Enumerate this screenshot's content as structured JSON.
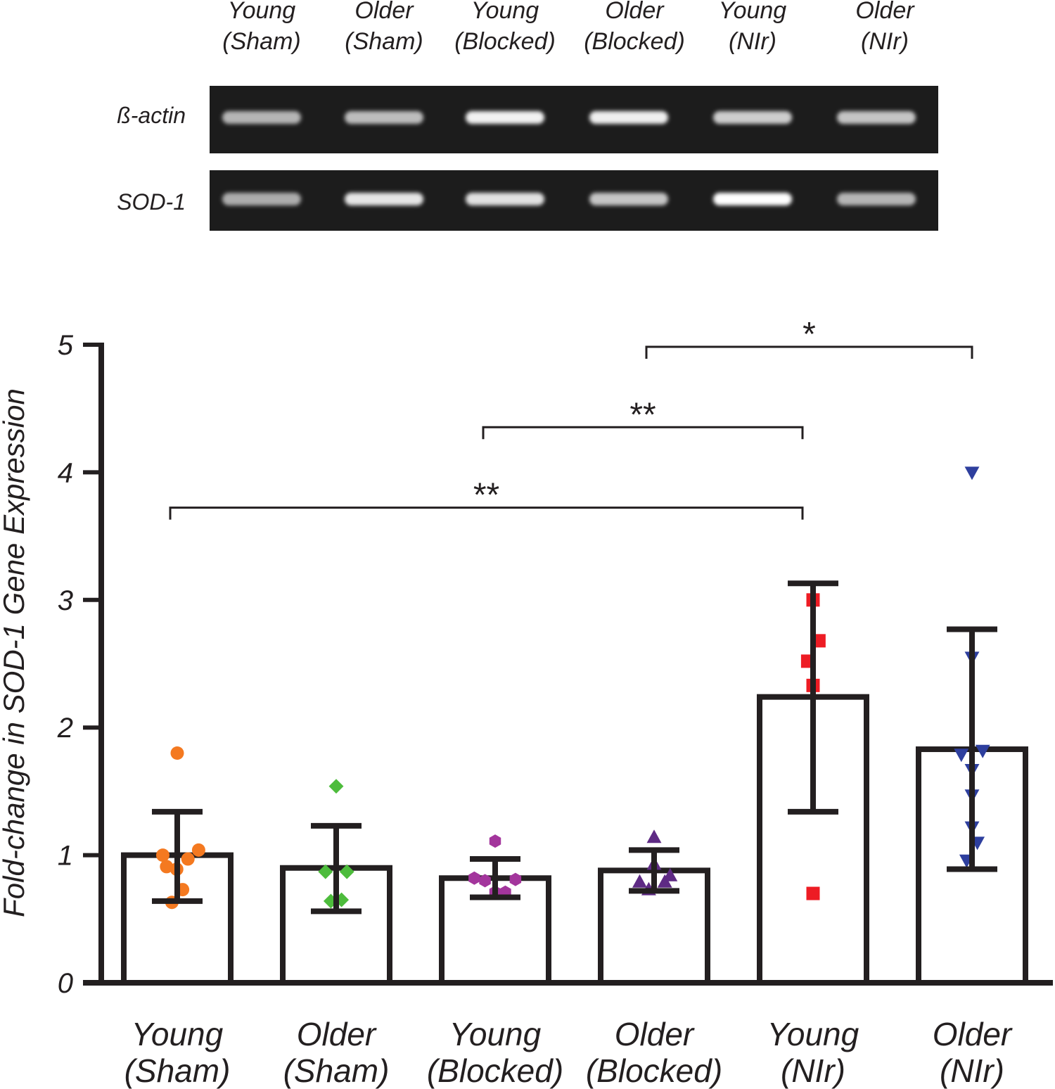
{
  "gel": {
    "lanes": [
      {
        "line1": "Young",
        "line2": "(Sham)"
      },
      {
        "line1": "Older",
        "line2": "(Sham)"
      },
      {
        "line1": "Young",
        "line2": "(Blocked)"
      },
      {
        "line1": "Older",
        "line2": "(Blocked)"
      },
      {
        "line1": "Young",
        "line2": "(NIr)"
      },
      {
        "line1": "Older",
        "line2": "(NIr)"
      }
    ],
    "rows": [
      {
        "label": "ß-actin",
        "intensities": [
          0.55,
          0.6,
          0.92,
          0.9,
          0.7,
          0.65
        ]
      },
      {
        "label": "SOD-1",
        "intensities": [
          0.5,
          0.85,
          0.82,
          0.65,
          1.0,
          0.55
        ]
      }
    ]
  },
  "chart_data": {
    "type": "bar",
    "title": "",
    "xlabel": "",
    "ylabel": "Fold-change in SOD-1 Gene Expression",
    "ylim": [
      0,
      5
    ],
    "yticks": [
      "0",
      "1",
      "2",
      "3",
      "4",
      "5"
    ],
    "grid": false,
    "categories": [
      {
        "line1": "Young",
        "line2": "(Sham)"
      },
      {
        "line1": "Older",
        "line2": "(Sham)"
      },
      {
        "line1": "Young",
        "line2": "(Blocked)"
      },
      {
        "line1": "Older",
        "line2": "(Blocked)"
      },
      {
        "line1": "Young",
        "line2": "(NIr)"
      },
      {
        "line1": "Older",
        "line2": "(NIr)"
      }
    ],
    "series": [
      {
        "name": "Young (Sham)",
        "mean": 1.0,
        "err_low": 0.64,
        "err_high": 1.34,
        "marker": "circle",
        "color": "#f47920",
        "points": [
          [
            -0.27,
            1.0
          ],
          [
            -0.2,
            0.91
          ],
          [
            -0.01,
            0.89
          ],
          [
            0.2,
            0.97
          ],
          [
            0.4,
            1.04
          ],
          [
            0.0,
            1.8
          ],
          [
            0.1,
            0.73
          ],
          [
            -0.1,
            0.63
          ]
        ]
      },
      {
        "name": "Older (Sham)",
        "mean": 0.9,
        "err_low": 0.56,
        "err_high": 1.23,
        "marker": "diamond",
        "color": "#4dbc3c",
        "points": [
          [
            0.0,
            1.54
          ],
          [
            -0.2,
            0.87
          ],
          [
            0.2,
            0.87
          ],
          [
            -0.1,
            0.64
          ],
          [
            0.1,
            0.65
          ]
        ]
      },
      {
        "name": "Young (Blocked)",
        "mean": 0.82,
        "err_low": 0.67,
        "err_high": 0.97,
        "marker": "hexagon",
        "color": "#a3359c",
        "points": [
          [
            -0.39,
            0.82
          ],
          [
            -0.19,
            0.8
          ],
          [
            0.0,
            1.11
          ],
          [
            0.19,
            0.71
          ],
          [
            0.38,
            0.81
          ],
          [
            0.0,
            0.71
          ]
        ]
      },
      {
        "name": "Older (Blocked)",
        "mean": 0.88,
        "err_low": 0.72,
        "err_high": 1.04,
        "marker": "triangle-up",
        "color": "#5e2a84",
        "points": [
          [
            -0.27,
            0.79
          ],
          [
            0.0,
            1.14
          ],
          [
            0.0,
            0.93
          ],
          [
            0.2,
            0.79
          ],
          [
            0.3,
            0.84
          ],
          [
            -0.1,
            0.73
          ]
        ]
      },
      {
        "name": "Young (NIr)",
        "mean": 2.24,
        "err_low": 1.34,
        "err_high": 3.13,
        "marker": "square",
        "color": "#ed1c24",
        "points": [
          [
            0.0,
            3.0
          ],
          [
            0.11,
            2.68
          ],
          [
            -0.1,
            2.52
          ],
          [
            0.0,
            2.33
          ],
          [
            0.0,
            0.7
          ]
        ]
      },
      {
        "name": "Older (NIr)",
        "mean": 1.83,
        "err_low": 0.89,
        "err_high": 2.77,
        "marker": "triangle-down",
        "color": "#2e3f9e",
        "points": [
          [
            0.0,
            4.0
          ],
          [
            0.0,
            2.55
          ],
          [
            -0.2,
            1.79
          ],
          [
            0.2,
            1.82
          ],
          [
            0.0,
            1.67
          ],
          [
            0.0,
            1.47
          ],
          [
            0.0,
            1.22
          ],
          [
            0.1,
            1.1
          ],
          [
            -0.1,
            0.96
          ]
        ]
      }
    ],
    "significance": [
      {
        "from": 3,
        "to": 5,
        "label": "*",
        "y": 5.0
      },
      {
        "from": 2,
        "to": 4,
        "label": "**",
        "y": 4.37
      },
      {
        "from": 0,
        "to": 4,
        "label": "**",
        "y": 3.74
      }
    ]
  }
}
